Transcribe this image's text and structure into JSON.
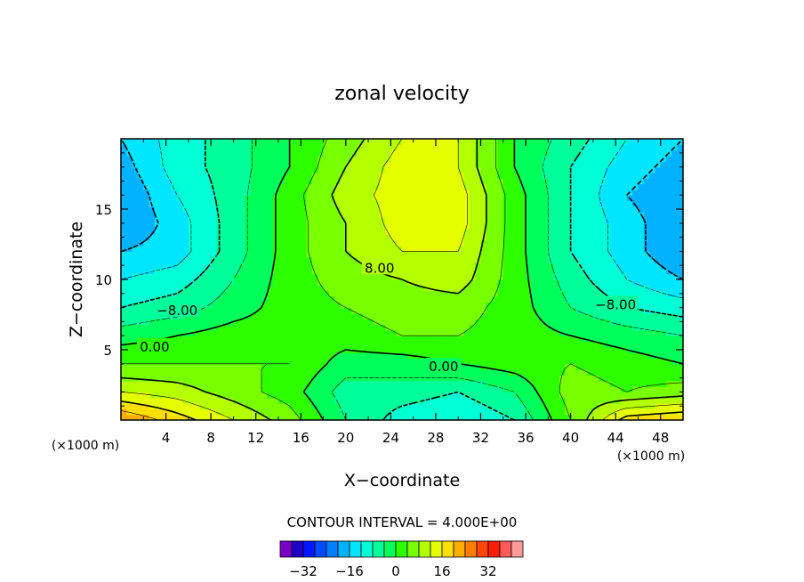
{
  "chart_data": {
    "type": "heatmap",
    "title": "zonal velocity",
    "xlabel": "X−coordinate",
    "ylabel": "Z−coordinate",
    "x_scale_label": "(×1000 m)",
    "xlim": [
      0,
      50
    ],
    "ylim": [
      0,
      20
    ],
    "x_ticks": [
      4,
      8,
      12,
      16,
      20,
      24,
      28,
      32,
      36,
      40,
      44,
      48
    ],
    "y_ticks": [
      5,
      10,
      15
    ],
    "contour_interval_text": "CONTOUR INTERVAL = 4.000E+00",
    "contour_labels": [
      {
        "text": "8.00",
        "x": 23.0,
        "y": 10.8
      },
      {
        "text": "−8.00",
        "x": 5.0,
        "y": 7.8
      },
      {
        "text": "0.00",
        "x": 3.0,
        "y": 5.2
      },
      {
        "text": "0.00",
        "x": 28.7,
        "y": 3.8
      },
      {
        "text": "−8.00",
        "x": 44.0,
        "y": 8.2
      }
    ],
    "colorbar": {
      "colors": [
        "#7a00c8",
        "#1e00c8",
        "#0019ff",
        "#004dff",
        "#0080ff",
        "#00b2ff",
        "#00e6ff",
        "#00ffd5",
        "#00ff9a",
        "#00ff5a",
        "#2dff00",
        "#78ff00",
        "#b4ff00",
        "#e6ff00",
        "#ffdf00",
        "#ffae00",
        "#ff7d00",
        "#ff4600",
        "#ff1e00",
        "#ff5a5a",
        "#ff9b9b"
      ],
      "tick_labels": [
        "−32",
        "−16",
        "0",
        "16",
        "32"
      ],
      "tick_values": [
        -32,
        -16,
        0,
        16,
        32
      ],
      "range": [
        -40,
        44
      ]
    },
    "field": {
      "x": [
        0,
        5,
        10,
        15,
        20,
        25,
        30,
        35,
        40,
        45,
        50
      ],
      "z": [
        0,
        2,
        4,
        6,
        8,
        10,
        12,
        14,
        16,
        18,
        20
      ],
      "values": [
        [
          24,
          18,
          12,
          6,
          -4,
          -10,
          -12,
          -8,
          4,
          18,
          20
        ],
        [
          12,
          10,
          6,
          2,
          -6,
          -6,
          -8,
          -4,
          6,
          4,
          6
        ],
        [
          4,
          4,
          4,
          4,
          -2,
          -2,
          0,
          2,
          4,
          2,
          0
        ],
        [
          -2,
          0,
          2,
          2,
          2,
          4,
          4,
          2,
          0,
          -2,
          -4
        ],
        [
          -8,
          -6,
          -2,
          2,
          4,
          6,
          6,
          2,
          -4,
          -8,
          -10
        ],
        [
          -12,
          -10,
          -4,
          2,
          6,
          8,
          10,
          2,
          -6,
          -12,
          -16
        ],
        [
          -16,
          -14,
          -6,
          2,
          8,
          12,
          12,
          2,
          -8,
          -14,
          -20
        ],
        [
          -20,
          -14,
          -6,
          2,
          8,
          14,
          14,
          2,
          -8,
          -14,
          -20
        ],
        [
          -20,
          -12,
          -6,
          2,
          10,
          14,
          14,
          2,
          -8,
          -16,
          -20
        ],
        [
          -18,
          -10,
          -6,
          0,
          8,
          14,
          12,
          0,
          -8,
          -14,
          -18
        ],
        [
          -16,
          -10,
          -6,
          0,
          6,
          12,
          12,
          0,
          -6,
          -12,
          -16
        ]
      ]
    }
  }
}
